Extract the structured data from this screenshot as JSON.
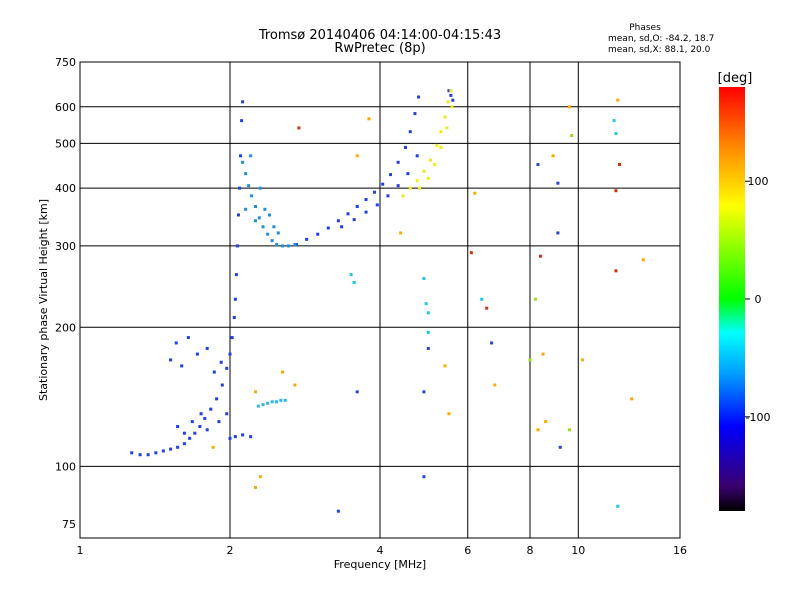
{
  "chart_data": {
    "type": "scatter",
    "title": "Tromsø 20140406 04:14:00-04:15:43",
    "subtitle": "RwPretec (8p)",
    "xlabel": "Frequency [MHz]",
    "ylabel": "Stationary phase Virtual Height [km]",
    "x_scale": "log",
    "y_scale": "log",
    "xlim": [
      1,
      16
    ],
    "ylim": [
      70,
      750
    ],
    "x_ticks": [
      1,
      2,
      4,
      6,
      8,
      10,
      16
    ],
    "y_ticks": [
      75,
      100,
      200,
      300,
      400,
      500,
      600,
      750
    ],
    "grid": true,
    "legend": {
      "heading": "Phases",
      "lines": [
        "mean, sd,O: -84.2, 18.7",
        "mean, sd,X: 88.1, 20.0"
      ]
    },
    "colorbar": {
      "label": "[deg]",
      "ticks": [
        100,
        0,
        -100
      ],
      "range": [
        -180,
        180
      ],
      "colors": [
        "#000000",
        "#3a0070",
        "#0000ff",
        "#0099ff",
        "#00ffff",
        "#00ff00",
        "#ffff00",
        "#ff8800",
        "#ff0000"
      ]
    },
    "series": [
      {
        "color": "#1f3fe8",
        "points": [
          [
            1.27,
            107
          ],
          [
            1.32,
            106
          ],
          [
            1.37,
            106
          ],
          [
            1.42,
            107
          ],
          [
            1.47,
            108
          ],
          [
            1.52,
            109
          ],
          [
            1.57,
            110
          ],
          [
            1.62,
            112
          ],
          [
            1.66,
            115
          ],
          [
            1.7,
            118
          ],
          [
            1.74,
            122
          ],
          [
            1.78,
            127
          ],
          [
            1.83,
            133
          ],
          [
            1.88,
            140
          ],
          [
            1.93,
            150
          ],
          [
            1.97,
            163
          ],
          [
            2.0,
            175
          ],
          [
            2.02,
            190
          ],
          [
            2.04,
            210
          ],
          [
            2.05,
            230
          ],
          [
            2.06,
            260
          ],
          [
            2.07,
            300
          ],
          [
            2.08,
            350
          ],
          [
            2.09,
            400
          ],
          [
            2.1,
            470
          ],
          [
            2.11,
            560
          ],
          [
            2.12,
            615
          ],
          [
            1.52,
            170
          ],
          [
            1.56,
            185
          ],
          [
            1.6,
            165
          ],
          [
            1.65,
            190
          ],
          [
            1.72,
            175
          ],
          [
            1.8,
            180
          ],
          [
            1.86,
            160
          ],
          [
            1.92,
            168
          ],
          [
            1.57,
            122
          ],
          [
            1.62,
            118
          ],
          [
            1.68,
            125
          ],
          [
            1.75,
            130
          ],
          [
            1.8,
            120
          ],
          [
            1.9,
            125
          ],
          [
            1.97,
            130
          ],
          [
            2.0,
            115
          ],
          [
            2.05,
            116
          ],
          [
            2.12,
            117
          ],
          [
            2.2,
            116
          ],
          [
            2.72,
            302
          ],
          [
            2.85,
            310
          ],
          [
            3.0,
            318
          ],
          [
            3.15,
            328
          ],
          [
            3.3,
            340
          ],
          [
            3.45,
            352
          ],
          [
            3.6,
            365
          ],
          [
            3.75,
            378
          ],
          [
            3.9,
            392
          ],
          [
            4.05,
            408
          ],
          [
            4.2,
            428
          ],
          [
            4.35,
            455
          ],
          [
            4.5,
            490
          ],
          [
            4.6,
            530
          ],
          [
            4.7,
            580
          ],
          [
            4.78,
            630
          ],
          [
            3.35,
            330
          ],
          [
            3.55,
            342
          ],
          [
            3.75,
            355
          ],
          [
            3.95,
            368
          ],
          [
            4.15,
            385
          ],
          [
            4.35,
            405
          ],
          [
            4.55,
            430
          ],
          [
            4.75,
            470
          ],
          [
            5.5,
            650
          ],
          [
            5.55,
            635
          ],
          [
            5.6,
            620
          ]
        ]
      },
      {
        "color": "#1d8fe0",
        "points": [
          [
            2.12,
            455
          ],
          [
            2.15,
            430
          ],
          [
            2.18,
            405
          ],
          [
            2.21,
            385
          ],
          [
            2.25,
            365
          ],
          [
            2.29,
            345
          ],
          [
            2.33,
            330
          ],
          [
            2.38,
            318
          ],
          [
            2.43,
            308
          ],
          [
            2.48,
            302
          ],
          [
            2.55,
            300
          ],
          [
            2.62,
            300
          ],
          [
            2.7,
            302
          ],
          [
            2.2,
            470
          ],
          [
            2.3,
            400
          ],
          [
            2.4,
            350
          ],
          [
            2.5,
            320
          ],
          [
            2.15,
            360
          ],
          [
            2.25,
            340
          ],
          [
            2.35,
            360
          ],
          [
            2.45,
            330
          ]
        ]
      },
      {
        "color": "#2ab8e6",
        "points": [
          [
            2.28,
            135
          ],
          [
            2.33,
            136
          ],
          [
            2.38,
            137
          ],
          [
            2.43,
            138
          ],
          [
            2.48,
            138
          ],
          [
            2.53,
            139
          ],
          [
            2.58,
            139
          ]
        ]
      },
      {
        "color": "#f0ec1a",
        "points": [
          [
            4.45,
            385
          ],
          [
            4.6,
            400
          ],
          [
            4.75,
            415
          ],
          [
            4.9,
            435
          ],
          [
            5.05,
            460
          ],
          [
            5.2,
            495
          ],
          [
            5.3,
            530
          ],
          [
            5.4,
            570
          ],
          [
            5.48,
            615
          ],
          [
            5.55,
            650
          ],
          [
            4.8,
            400
          ],
          [
            5.0,
            420
          ],
          [
            5.15,
            450
          ],
          [
            5.3,
            490
          ],
          [
            5.45,
            540
          ],
          [
            5.58,
            600
          ]
        ]
      },
      {
        "color": "#1cc8e0",
        "points": [
          [
            3.5,
            260
          ],
          [
            3.55,
            250
          ],
          [
            4.9,
            255
          ],
          [
            4.95,
            225
          ],
          [
            5.0,
            215
          ],
          [
            5.0,
            195
          ],
          [
            6.4,
            230
          ],
          [
            11.8,
            560
          ],
          [
            11.9,
            525
          ],
          [
            12.0,
            82
          ]
        ]
      },
      {
        "color": "#2244dd",
        "points": [
          [
            3.3,
            80
          ],
          [
            3.6,
            145
          ],
          [
            4.9,
            95
          ],
          [
            4.9,
            145
          ],
          [
            5.0,
            180
          ],
          [
            6.7,
            185
          ],
          [
            8.3,
            450
          ],
          [
            9.1,
            320
          ],
          [
            9.1,
            410
          ],
          [
            9.2,
            110
          ]
        ]
      },
      {
        "color": "#cc3311",
        "points": [
          [
            2.75,
            540
          ],
          [
            6.1,
            290
          ],
          [
            8.4,
            285
          ],
          [
            11.9,
            265
          ],
          [
            11.9,
            395
          ],
          [
            6.55,
            220
          ],
          [
            12.1,
            450
          ]
        ]
      },
      {
        "color": "#ffaa00",
        "points": [
          [
            1.85,
            110
          ],
          [
            2.25,
            145
          ],
          [
            2.55,
            160
          ],
          [
            2.7,
            150
          ],
          [
            3.6,
            470
          ],
          [
            3.8,
            565
          ],
          [
            4.4,
            320
          ],
          [
            5.4,
            165
          ],
          [
            5.5,
            130
          ],
          [
            6.2,
            390
          ],
          [
            6.8,
            150
          ],
          [
            8.5,
            175
          ],
          [
            8.9,
            470
          ],
          [
            9.6,
            600
          ],
          [
            10.2,
            170
          ],
          [
            12.0,
            620
          ],
          [
            12.8,
            140
          ],
          [
            13.5,
            280
          ],
          [
            2.3,
            95
          ],
          [
            2.25,
            90
          ],
          [
            8.3,
            120
          ],
          [
            8.6,
            125
          ]
        ]
      },
      {
        "color": "#99dd22",
        "points": [
          [
            8.2,
            230
          ],
          [
            9.7,
            520
          ],
          [
            8.0,
            170
          ],
          [
            9.6,
            120
          ]
        ]
      }
    ]
  }
}
